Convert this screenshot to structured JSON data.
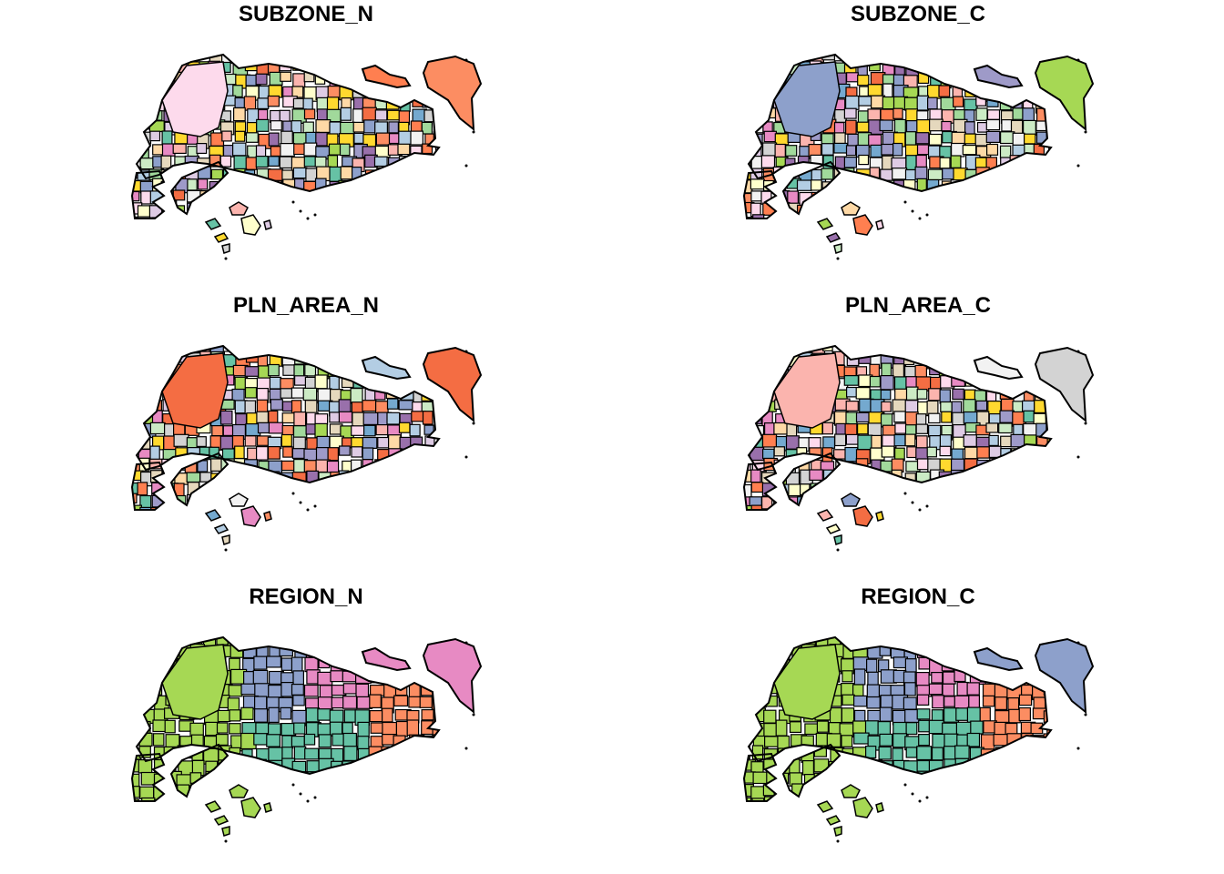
{
  "figure": {
    "panels": [
      {
        "title": "SUBZONE_N",
        "palette": "pastel"
      },
      {
        "title": "SUBZONE_C",
        "palette": "pastel"
      },
      {
        "title": "PLN_AREA_N",
        "palette": "pastel"
      },
      {
        "title": "PLN_AREA_C",
        "palette": "pastel"
      },
      {
        "title": "REGION_N",
        "palette": "region"
      },
      {
        "title": "REGION_C",
        "palette": "region"
      }
    ],
    "colors": {
      "outline": "#000000",
      "pastel": [
        "#FBB4AE",
        "#B3CDE3",
        "#CCEBC5",
        "#DECBE4",
        "#FED9A6",
        "#FFFFCC",
        "#E5D8BD",
        "#FDDAEC",
        "#F2F2F2",
        "#FF7F50",
        "#66C2A5",
        "#FC8D62",
        "#8DA0CB",
        "#E78AC3",
        "#A6D854",
        "#FFD92F",
        "#9E9AC8",
        "#F46D43",
        "#74A9CF",
        "#9970AB",
        "#D3D3D3",
        "#A1D99B"
      ],
      "region": {
        "west": "#A6D854",
        "north": "#8DA0CB",
        "northeast": "#E78AC3",
        "east": "#FC8D62",
        "central": "#66C2A5"
      }
    }
  }
}
